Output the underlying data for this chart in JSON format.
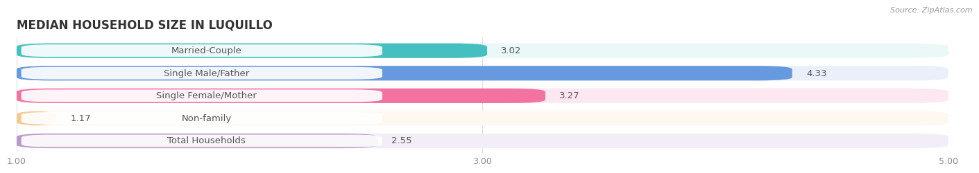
{
  "title": "MEDIAN HOUSEHOLD SIZE IN LUQUILLO",
  "source": "Source: ZipAtlas.com",
  "categories": [
    "Married-Couple",
    "Single Male/Father",
    "Single Female/Mother",
    "Non-family",
    "Total Households"
  ],
  "values": [
    3.02,
    4.33,
    3.27,
    1.17,
    2.55
  ],
  "bar_colors": [
    "#45bfbf",
    "#6699dd",
    "#f472a0",
    "#f5c992",
    "#bb99cc"
  ],
  "bg_colors": [
    "#eaf8f8",
    "#eaeffa",
    "#fde8f2",
    "#fef8f0",
    "#f3edf8"
  ],
  "xlim_min": 1.0,
  "xlim_max": 5.0,
  "xticks": [
    1.0,
    3.0,
    5.0
  ],
  "title_fontsize": 12,
  "label_fontsize": 9.5,
  "value_fontsize": 9.5,
  "axis_fontsize": 9,
  "background_color": "#ffffff",
  "grid_color": "#dddddd",
  "text_color": "#555555",
  "value_color": "#555555",
  "source_color": "#999999"
}
